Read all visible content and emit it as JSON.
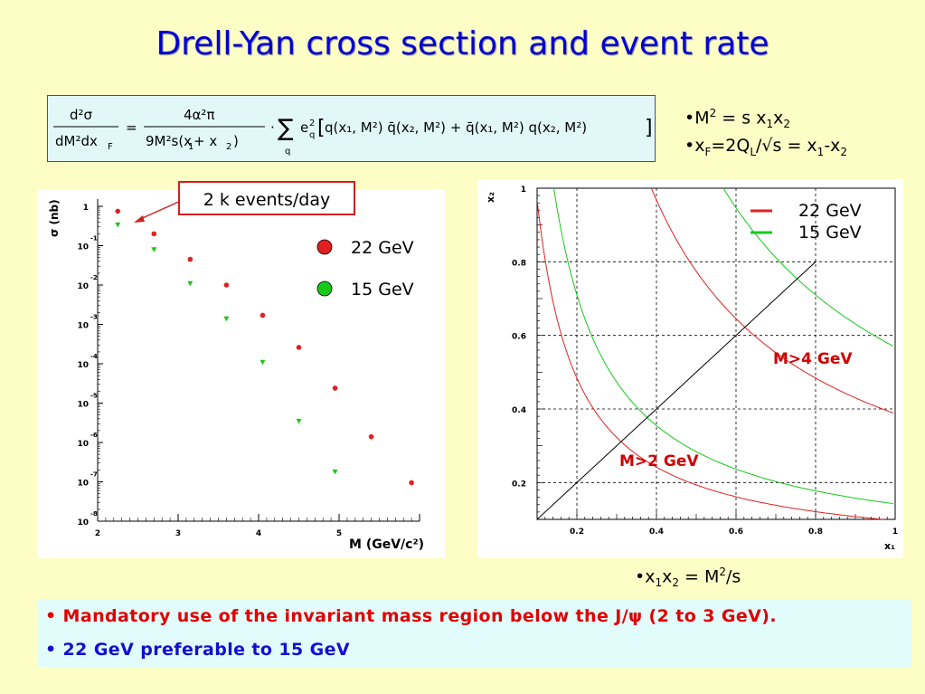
{
  "title": "Drell-Yan cross section and event rate",
  "formula": {
    "lhs_num": "d²σ",
    "lhs_den": "dM²dx",
    "lhs_den_sub": "F",
    "rhs_num": "4α²π",
    "rhs_den": "9M²s(x",
    "rhs_den_sub1": "1",
    "rhs_den_mid": " + x",
    "rhs_den_sub2": "2",
    "rhs_den_end": ")",
    "sum_sub": "q",
    "charge": "e",
    "charge_sub": "q",
    "charge_sup": "2",
    "pdf_terms": "q(x₁, M²) q̄(x₂, M²) + q̄(x₁, M²) q(x₂, M²)"
  },
  "right_bullets": {
    "b1_a": "•M",
    "b1_sup": "2",
    "b1_b": " = s x",
    "b1_sub1": "1",
    "b1_c": "x",
    "b1_sub2": "2",
    "b2_a": "•x",
    "b2_sub1": "F",
    "b2_b": "=2Q",
    "b2_sub2": "L",
    "b2_c": "/√s = x",
    "b2_sub3": "1",
    "b2_d": "-x",
    "b2_sub4": "2",
    "b3_a": "•x",
    "b3_sub1": "1",
    "b3_b": "x",
    "b3_sub2": "2",
    "b3_c": " = M",
    "b3_sup": "2",
    "b3_d": "/s"
  },
  "callout": "2 k events/day",
  "bottom": {
    "line1": "• Mandatory use of the invariant mass region below the  J/ψ (2 to 3 GeV).",
    "line2": "• 22 GeV preferable to 15 GeV"
  },
  "colors": {
    "red": "#E02020",
    "green": "#18C818",
    "title": "#0000D0",
    "bottom_red": "#E00000",
    "bottom_blue": "#1010D0"
  },
  "chart_data": [
    {
      "type": "scatter",
      "ylabel": "σ (nb)",
      "xlabel": "M (GeV/c²)",
      "xlim": [
        2,
        6
      ],
      "ylim": [
        1e-08,
        1
      ],
      "log_y": true,
      "x_ticks": [
        "2",
        "3",
        "4",
        "5"
      ],
      "y_ticks": [
        {
          "base": "1",
          "exp": ""
        },
        {
          "base": "10",
          "exp": "-1"
        },
        {
          "base": "10",
          "exp": "-2"
        },
        {
          "base": "10",
          "exp": "-3"
        },
        {
          "base": "10",
          "exp": "-4"
        },
        {
          "base": "10",
          "exp": "-5"
        },
        {
          "base": "10",
          "exp": "-6"
        },
        {
          "base": "10",
          "exp": "-7"
        },
        {
          "base": "10",
          "exp": "-8"
        }
      ],
      "series": [
        {
          "name": "22 GeV",
          "marker": "circle",
          "color": "#E02020",
          "x": [
            2.25,
            2.7,
            3.15,
            3.6,
            4.05,
            4.5,
            4.95,
            5.4,
            5.9
          ],
          "y": [
            0.75,
            0.2,
            0.045,
            0.01,
            0.0017,
            0.00026,
            2.4e-05,
            1.4e-06,
            9.5e-08
          ]
        },
        {
          "name": "15 GeV",
          "marker": "triangle",
          "color": "#18C818",
          "x": [
            2.25,
            2.7,
            3.15,
            3.6,
            4.05,
            4.5,
            4.95
          ],
          "y": [
            0.34,
            0.08,
            0.011,
            0.0014,
            0.00011,
            3.5e-06,
            1.8e-07
          ]
        }
      ]
    },
    {
      "type": "line",
      "xlabel": "x₁",
      "ylabel": "x₂",
      "xlim": [
        0.1,
        1.0
      ],
      "ylim": [
        0.1,
        1.0
      ],
      "x_ticks": [
        "0.2",
        "0.4",
        "0.6",
        "0.8",
        "1"
      ],
      "y_ticks": [
        "0.2",
        "0.4",
        "0.6",
        "0.8",
        "1"
      ],
      "grid": true,
      "legend": {
        "position": "top-right",
        "entries": [
          {
            "name": "22 GeV",
            "color": "#E02020"
          },
          {
            "name": "15 GeV",
            "color": "#18C818"
          }
        ]
      },
      "series": [
        {
          "name": "22 GeV M>2 GeV",
          "color": "#E02020",
          "curve": "x1*x2 = 0.0968"
        },
        {
          "name": "22 GeV M>4 GeV",
          "color": "#E02020",
          "curve": "x1*x2 = 0.3872"
        },
        {
          "name": "15 GeV M>2 GeV",
          "color": "#18C818",
          "curve": "x1*x2 = 0.142"
        },
        {
          "name": "15 GeV M>4 GeV",
          "color": "#18C818",
          "curve": "x1*x2 = 0.568"
        },
        {
          "name": "x1 = x2",
          "color": "#000000",
          "x": [
            0.1,
            0.8
          ],
          "y": [
            0.1,
            0.8
          ]
        }
      ],
      "annotations": [
        "M>4 GeV",
        "M>2 GeV"
      ]
    }
  ]
}
